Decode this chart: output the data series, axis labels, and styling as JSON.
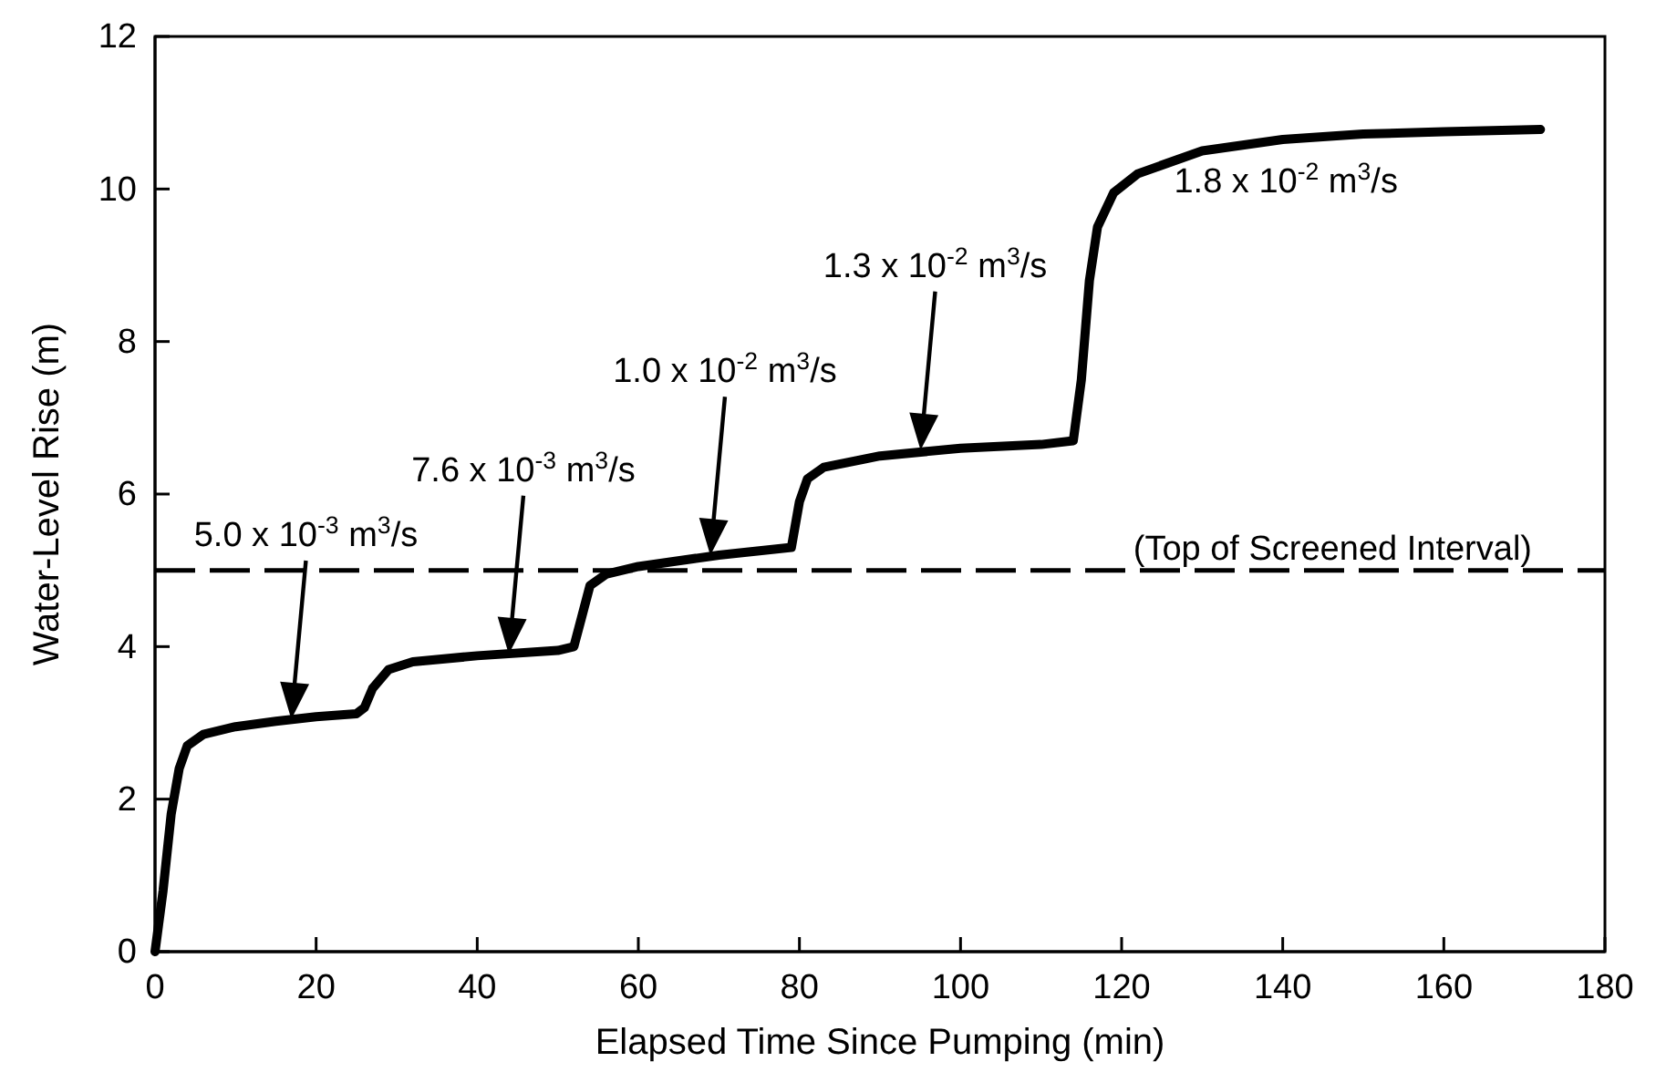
{
  "chart_data": {
    "type": "line",
    "xlabel": "Elapsed Time Since Pumping (min)",
    "ylabel": "Water-Level Rise (m)",
    "xlim": [
      0,
      180
    ],
    "xticks": [
      0,
      20,
      40,
      60,
      80,
      100,
      120,
      140,
      160,
      180
    ],
    "ylim": [
      0,
      12
    ],
    "yticks": [
      0,
      2,
      4,
      6,
      8,
      10,
      12
    ],
    "grid": false,
    "marker": "none",
    "line_style": "solid",
    "series": [
      {
        "color": "#000000",
        "x": [
          0,
          1,
          2,
          3,
          4,
          6,
          10,
          15,
          20,
          25,
          26,
          27,
          29,
          32,
          40,
          50,
          52,
          53,
          54,
          56,
          60,
          70,
          79,
          80,
          81,
          83,
          90,
          100,
          110,
          114,
          115,
          116,
          117,
          119,
          122,
          130,
          140,
          150,
          160,
          172
        ],
        "values": [
          0,
          0.8,
          1.8,
          2.4,
          2.7,
          2.85,
          2.95,
          3.02,
          3.08,
          3.12,
          3.2,
          3.45,
          3.7,
          3.8,
          3.88,
          3.95,
          4.0,
          4.4,
          4.8,
          4.95,
          5.05,
          5.2,
          5.3,
          5.9,
          6.2,
          6.35,
          6.5,
          6.6,
          6.65,
          6.7,
          7.5,
          8.8,
          9.5,
          9.95,
          10.2,
          10.5,
          10.65,
          10.72,
          10.75,
          10.78
        ]
      }
    ],
    "ref_lines": [
      {
        "axis": "y",
        "value": 5,
        "label": "(Top of Screened Interval)",
        "color": "#000000",
        "line_style": "dashed"
      }
    ],
    "annotations": [
      "5.0 x 10$^{-3}$ m$^{3}$/s",
      "7.6 x 10$^{-3}$ m$^{3}$/s",
      "1.0 x 10$^{-2}$ m$^{3}$/s",
      "1.3 x 10$^{-2}$ m$^{3}$/s",
      "1.8 x 10$^{-2}$ m$^{3}$/s"
    ]
  }
}
